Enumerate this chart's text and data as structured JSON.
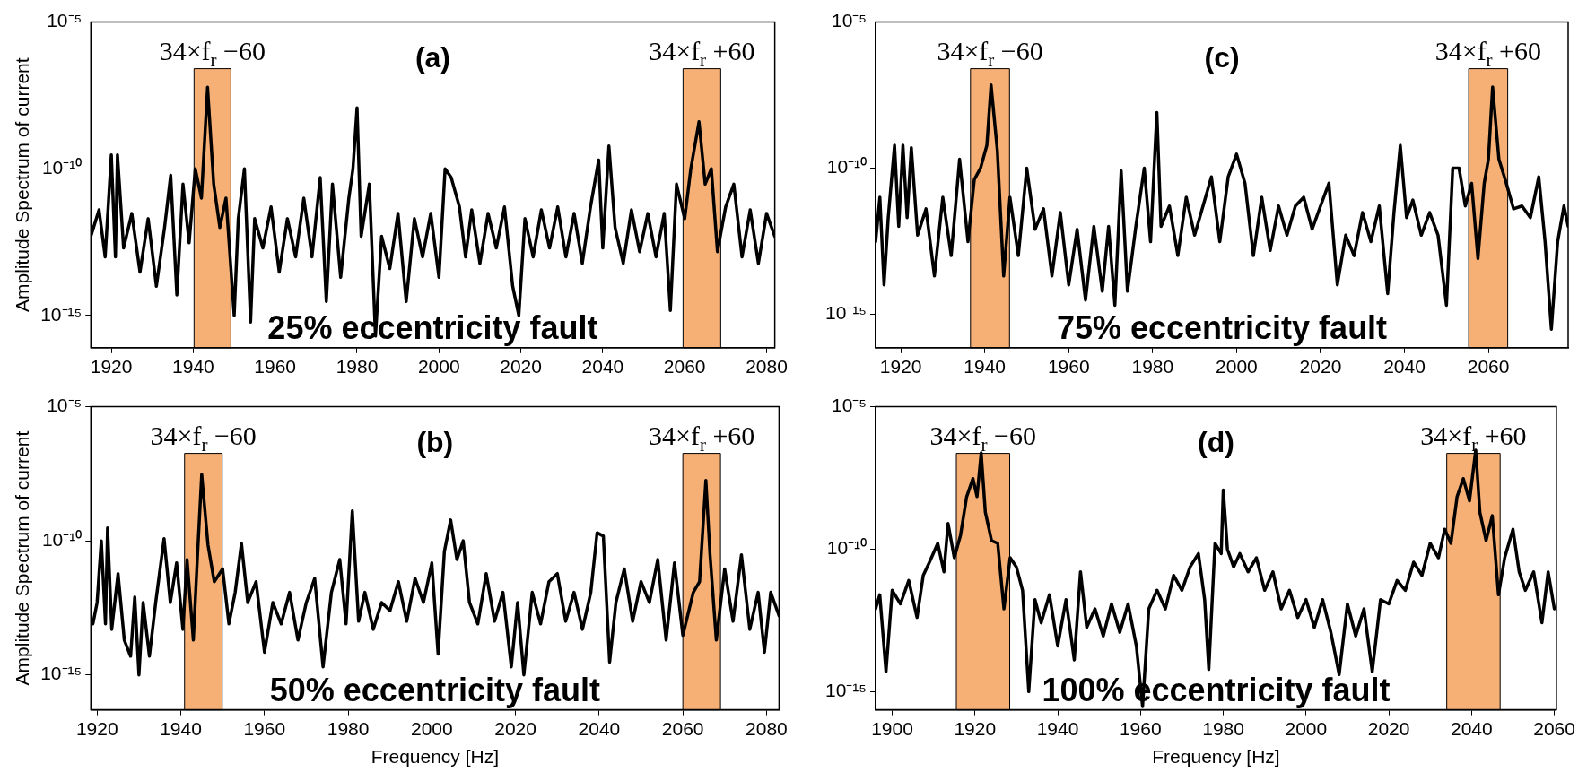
{
  "chart_data": [
    {
      "type": "line",
      "title": "(a)",
      "ylabel": "Amplitude Spectrum of current",
      "log": "y",
      "grid": false,
      "marker": "none",
      "line_style": "solid",
      "color": "#000000",
      "annotations": [
        "25% eccentricity fault"
      ],
      "xlim": [
        1915,
        2082
      ],
      "xticks": [
        1920,
        1940,
        1960,
        1980,
        2000,
        2020,
        2040,
        2060,
        2080
      ],
      "ylim": [
        8e-17,
        1e-05
      ],
      "yticks": [
        {
          "value": 1e-15,
          "label": "10⁻¹⁵"
        },
        {
          "value": 1e-10,
          "label": "10⁻¹⁰"
        },
        {
          "value": 1e-05,
          "label": "10⁻⁵"
        }
      ],
      "bands": [
        {
          "axis": "x",
          "from": 1940.2,
          "to": 1949.2,
          "label": "34×f$_{r}$ −60",
          "color": "#f5a25d"
        },
        {
          "axis": "x",
          "from": 2059.6,
          "to": 2068.8,
          "label": "34×f$_{r}$ +60",
          "color": "#f5a25d"
        }
      ],
      "x": [
        1915,
        1917,
        1918.5,
        1920,
        1921,
        1921.5,
        1923,
        1925,
        1927,
        1929,
        1931,
        1933,
        1934.5,
        1936,
        1937.5,
        1939,
        1940.5,
        1942,
        1943.5,
        1945,
        1946.5,
        1948,
        1950,
        1951,
        1952.5,
        1954,
        1955,
        1957,
        1959,
        1961,
        1963,
        1965,
        1967,
        1969,
        1971,
        1972.5,
        1974,
        1976,
        1978,
        1979,
        1980,
        1981,
        1983,
        1984.5,
        1986,
        1988,
        1990,
        1992,
        1994,
        1996,
        1998,
        2000,
        2001.5,
        2003,
        2005,
        2006.5,
        2008,
        2010,
        2012,
        2014,
        2016,
        2018,
        2019.5,
        2021,
        2023,
        2025,
        2027,
        2029,
        2031,
        2033,
        2035,
        2037,
        2039,
        2040,
        2041.5,
        2043,
        2045,
        2047,
        2049,
        2051,
        2053,
        2055,
        2056.5,
        2058,
        2060,
        2061.5,
        2063.5,
        2065,
        2066.5,
        2068,
        2070,
        2072,
        2074,
        2076,
        2078,
        2080,
        2082
      ],
      "values": [
        5e-13,
        4e-12,
        1e-13,
        3e-10,
        1e-13,
        3e-10,
        2e-13,
        3e-12,
        3e-14,
        2e-12,
        1e-14,
        1e-12,
        6e-11,
        5e-15,
        3e-11,
        3e-13,
        1e-10,
        1e-11,
        6e-08,
        3e-11,
        1e-12,
        1e-11,
        1e-15,
        2e-12,
        1e-10,
        6e-16,
        2e-12,
        2e-13,
        5e-12,
        3e-14,
        2e-12,
        1e-13,
        1e-11,
        1e-13,
        5e-11,
        3e-15,
        3e-11,
        2e-14,
        1e-11,
        1e-10,
        1.2e-08,
        5e-13,
        3e-11,
        2e-16,
        5e-13,
        4e-14,
        3e-12,
        3e-15,
        2e-12,
        1e-13,
        3e-12,
        2e-14,
        1e-10,
        5e-11,
        5e-12,
        1e-13,
        4e-12,
        6e-14,
        3e-12,
        2e-13,
        5e-12,
        1e-14,
        1e-15,
        2e-12,
        1e-13,
        4e-12,
        2e-13,
        5e-12,
        1e-13,
        3e-12,
        6e-14,
        5e-12,
        2e-10,
        2e-13,
        6e-10,
        1e-12,
        6e-14,
        4e-12,
        1.5e-13,
        3e-12,
        1e-13,
        3e-12,
        1.5e-15,
        3e-11,
        2e-12,
        1e-10,
        4e-09,
        3e-11,
        1e-10,
        1.5e-13,
        5e-12,
        3e-11,
        1e-13,
        4e-12,
        6e-14,
        3e-12,
        5e-13
      ]
    },
    {
      "type": "line",
      "title": "(c)",
      "log": "y",
      "grid": false,
      "marker": "none",
      "line_style": "solid",
      "color": "#000000",
      "annotations": [
        "75% eccentricity fault"
      ],
      "xlim": [
        1914,
        2079
      ],
      "xticks": [
        1920,
        1940,
        1960,
        1980,
        2000,
        2020,
        2040,
        2060
      ],
      "ylim": [
        7e-17,
        1e-05
      ],
      "yticks": [
        {
          "value": 1e-15,
          "label": "10⁻¹⁵"
        },
        {
          "value": 1e-10,
          "label": "10⁻¹⁰"
        },
        {
          "value": 1e-05,
          "label": "10⁻⁵"
        }
      ],
      "bands": [
        {
          "axis": "x",
          "from": 1936.6,
          "to": 1945.9,
          "label": "34×f$_{r}$ −60",
          "color": "#f5a25d"
        },
        {
          "axis": "x",
          "from": 2055.3,
          "to": 2064.6,
          "label": "34×f$_{r}$ +60",
          "color": "#f5a25d"
        }
      ],
      "x": [
        1914,
        1915,
        1916,
        1917,
        1918.5,
        1919.5,
        1920.5,
        1921.5,
        1922.5,
        1924,
        1926,
        1928,
        1930,
        1932,
        1934,
        1936,
        1937.5,
        1939,
        1940.5,
        1941.5,
        1943,
        1944.5,
        1946,
        1948,
        1950,
        1952,
        1954,
        1956,
        1958,
        1960,
        1962,
        1964,
        1966,
        1968,
        1969.5,
        1971,
        1972.5,
        1974,
        1976,
        1978,
        1979.5,
        1981,
        1982,
        1984,
        1986,
        1988,
        1990,
        1992,
        1994,
        1996,
        1998,
        2000,
        2002,
        2004,
        2006,
        2008,
        2010,
        2012,
        2014,
        2016,
        2018,
        2020,
        2022,
        2024,
        2026,
        2028,
        2030,
        2032,
        2034,
        2036,
        2037.5,
        2039,
        2040.5,
        2042,
        2044,
        2046,
        2048,
        2050,
        2051.5,
        2053,
        2054.5,
        2056,
        2057.5,
        2059,
        2060,
        2061,
        2062.5,
        2064,
        2066,
        2068,
        2070,
        2072,
        2073.5,
        2075,
        2076.5,
        2078,
        2079
      ],
      "values": [
        3e-13,
        1e-11,
        1e-14,
        2e-12,
        6e-10,
        1e-12,
        6e-10,
        2e-12,
        5e-10,
        5e-13,
        4e-12,
        2e-14,
        1e-11,
        1e-13,
        2e-10,
        3e-13,
        4e-11,
        1e-10,
        6e-10,
        7e-08,
        4e-10,
        2e-14,
        1e-11,
        1e-13,
        1e-10,
        8e-13,
        4e-12,
        2e-14,
        3e-12,
        1e-14,
        8e-13,
        3e-15,
        1e-12,
        6e-15,
        1e-12,
        2e-15,
        8e-11,
        6e-15,
        1e-12,
        1e-10,
        3e-13,
        8e-09,
        1e-12,
        5e-12,
        1e-13,
        1e-11,
        5e-13,
        5e-12,
        5e-11,
        3e-13,
        5e-11,
        3e-10,
        3e-11,
        1e-13,
        1e-11,
        1.5e-13,
        5e-12,
        5e-13,
        5e-12,
        1e-11,
        8e-13,
        5e-12,
        3e-11,
        1e-14,
        5e-13,
        1e-13,
        3e-12,
        3e-13,
        5e-12,
        5e-15,
        3e-12,
        6e-10,
        2e-12,
        8e-12,
        5e-13,
        3e-12,
        5e-13,
        2e-15,
        1e-10,
        1e-10,
        5e-12,
        3e-11,
        8e-14,
        3e-11,
        2e-10,
        6e-08,
        2e-10,
        4e-11,
        4e-12,
        5e-12,
        2e-12,
        5e-11,
        3e-13,
        3e-16,
        3e-13,
        5e-12,
        1e-12
      ]
    },
    {
      "type": "line",
      "title": "(b)",
      "xlabel": "Frequency [Hz]",
      "ylabel": "Amplitude Spectrum of current",
      "log": "y",
      "grid": false,
      "marker": "none",
      "line_style": "solid",
      "color": "#000000",
      "annotations": [
        "50% eccentricity fault"
      ],
      "xlim": [
        1918.5,
        2083
      ],
      "xticks": [
        1920,
        1940,
        1960,
        1980,
        2000,
        2020,
        2040,
        2060,
        2080
      ],
      "ylim": [
        5e-17,
        1e-05
      ],
      "yticks": [
        {
          "value": 1e-15,
          "label": "10⁻¹⁵"
        },
        {
          "value": 1e-10,
          "label": "10⁻¹⁰"
        },
        {
          "value": 1e-05,
          "label": "10⁻⁵"
        }
      ],
      "bands": [
        {
          "axis": "x",
          "from": 1940.9,
          "to": 1949.9,
          "label": "34×f$_{r}$ −60",
          "color": "#f5a25d"
        },
        {
          "axis": "x",
          "from": 2060,
          "to": 2069,
          "label": "34×f$_{r}$ +60",
          "color": "#f5a25d"
        }
      ],
      "x": [
        1919,
        1920,
        1921,
        1922,
        1922.5,
        1923.5,
        1925,
        1926.5,
        1928,
        1929,
        1930,
        1931,
        1932.5,
        1934,
        1936,
        1937.5,
        1939,
        1940.5,
        1941.5,
        1943,
        1944,
        1945,
        1946.5,
        1948,
        1950,
        1951.5,
        1953,
        1954.5,
        1956,
        1958,
        1960,
        1962,
        1964,
        1966,
        1968,
        1970,
        1972,
        1974,
        1976,
        1978,
        1979.5,
        1981,
        1982.5,
        1984,
        1986,
        1988,
        1990,
        1992,
        1994,
        1996,
        1998,
        2000,
        2001.5,
        2003,
        2004.5,
        2006,
        2007.5,
        2009,
        2011,
        2013,
        2015,
        2017,
        2019,
        2020.5,
        2022,
        2024,
        2026,
        2028,
        2030,
        2032,
        2034,
        2036,
        2038,
        2039.5,
        2041,
        2042.5,
        2044,
        2046,
        2048,
        2050,
        2052,
        2054,
        2056,
        2058,
        2060,
        2062.5,
        2064,
        2065.5,
        2066.5,
        2068,
        2070,
        2072,
        2074,
        2076,
        2078,
        2079.5,
        2081,
        2083
      ],
      "values": [
        8e-14,
        5e-13,
        1e-10,
        8e-14,
        3e-10,
        5e-14,
        6e-12,
        2e-14,
        5e-15,
        8e-13,
        1e-15,
        5e-13,
        5e-15,
        5e-13,
        1.2e-10,
        5e-13,
        1.5e-11,
        5e-14,
        2e-11,
        2e-14,
        3e-11,
        3e-08,
        7e-11,
        3e-12,
        9e-12,
        8e-14,
        1.2e-12,
        8e-11,
        5e-13,
        3e-12,
        7e-15,
        5e-13,
        8e-14,
        1.2e-12,
        2e-14,
        5e-13,
        4e-12,
        2e-15,
        1.2e-12,
        2e-11,
        8e-14,
        1.3e-09,
        1e-13,
        1.2e-12,
        5e-14,
        5e-13,
        2.5e-13,
        3e-12,
        1e-13,
        4e-12,
        5e-13,
        1.5e-11,
        6e-15,
        4e-11,
        6e-10,
        2e-11,
        1e-10,
        5e-13,
        8e-14,
        6e-12,
        1e-13,
        1.2e-12,
        2e-15,
        5e-13,
        1e-15,
        1.2e-12,
        8e-14,
        3e-12,
        6e-12,
        1e-13,
        1.2e-12,
        5e-14,
        1.2e-12,
        2e-10,
        1.5e-10,
        3e-15,
        5e-13,
        9e-12,
        1e-13,
        3e-12,
        5e-13,
        2e-11,
        2e-14,
        1.5e-11,
        3e-14,
        1.2e-12,
        3e-12,
        1.8e-08,
        3e-11,
        2e-14,
        9e-12,
        1e-13,
        3e-11,
        5e-14,
        1.2e-12,
        7e-15,
        1.2e-12,
        1.6e-13
      ]
    },
    {
      "type": "line",
      "title": "(d)",
      "xlabel": "Frequency [Hz]",
      "log": "y",
      "grid": false,
      "marker": "none",
      "line_style": "solid",
      "color": "#000000",
      "annotations": [
        "100% eccentricity fault"
      ],
      "xlim": [
        1896,
        2060.5
      ],
      "xticks": [
        1900,
        1920,
        1940,
        1960,
        1980,
        2000,
        2020,
        2040,
        2060
      ],
      "ylim": [
        2.3e-16,
        1e-05
      ],
      "yticks": [
        {
          "value": 1e-15,
          "label": "10⁻¹⁵"
        },
        {
          "value": 1e-10,
          "label": "10⁻¹⁰"
        },
        {
          "value": 1e-05,
          "label": "10⁻⁵"
        }
      ],
      "bands": [
        {
          "axis": "x",
          "from": 1915.5,
          "to": 1928.4,
          "label": "34×f$_{r}$ −60",
          "color": "#f5a25d"
        },
        {
          "axis": "x",
          "from": 2034,
          "to": 2046.9,
          "label": "34×f$_{r}$ +60",
          "color": "#f5a25d"
        }
      ],
      "x": [
        1896,
        1897,
        1898.5,
        1900,
        1902,
        1904,
        1906,
        1907.5,
        1909,
        1911,
        1912.5,
        1913.5,
        1915,
        1916.5,
        1918,
        1919.5,
        1920.5,
        1921.5,
        1922.5,
        1924,
        1925.5,
        1927,
        1928.5,
        1930,
        1931.5,
        1933,
        1934.5,
        1936,
        1938,
        1940,
        1942,
        1944,
        1945.5,
        1947,
        1949,
        1951,
        1953,
        1955,
        1957,
        1959,
        1960.5,
        1962,
        1964,
        1966,
        1968,
        1970,
        1972,
        1974,
        1975.5,
        1976.5,
        1978,
        1979.5,
        1980,
        1981,
        1982.5,
        1984,
        1986,
        1988,
        1990,
        1992,
        1994,
        1996,
        1998,
        2000,
        2002,
        2004,
        2006,
        2008,
        2010,
        2012,
        2014,
        2016,
        2018,
        2020,
        2022,
        2024,
        2026,
        2028,
        2030,
        2032,
        2033.5,
        2035,
        2036.5,
        2038,
        2039.5,
        2041,
        2042,
        2043.5,
        2045,
        2046.5,
        2048,
        2050,
        2051.5,
        2053,
        2055,
        2057,
        2058.5,
        2060
      ],
      "values": [
        8e-13,
        2.5e-12,
        5e-15,
        3.6e-12,
        1.2e-12,
        8e-12,
        4e-13,
        1.2e-11,
        3.5e-11,
        1.6e-10,
        1.6e-11,
        8e-10,
        5e-11,
        3e-10,
        7e-09,
        3e-08,
        7e-09,
        2.4e-07,
        2e-09,
        2e-10,
        1.6e-10,
        8e-13,
        5e-11,
        2.4e-11,
        3.6e-12,
        1e-15,
        1.7e-12,
        2.6e-13,
        2.5e-12,
        4e-14,
        1.7e-12,
        1.3e-14,
        1.6e-11,
        1.8e-13,
        8e-13,
        9e-14,
        1.2e-12,
        1.2e-13,
        1.2e-12,
        4e-14,
        3e-16,
        8e-13,
        3.6e-12,
        8e-13,
        1.2e-11,
        3.6e-12,
        2.4e-11,
        7e-11,
        1.7e-12,
        6e-15,
        1.6e-10,
        7e-11,
        1.2e-08,
        1e-10,
        2.4e-11,
        7e-11,
        1.6e-11,
        5e-11,
        3.6e-12,
        1.6e-11,
        8e-13,
        3.6e-12,
        4e-13,
        1.7e-12,
        1.8e-13,
        1.7e-12,
        1.2e-13,
        4e-15,
        1.2e-12,
        9e-14,
        8e-13,
        5e-15,
        1.7e-12,
        1.2e-12,
        8e-12,
        3.6e-12,
        3.5e-11,
        1.2e-11,
        1.6e-10,
        5e-11,
        5e-10,
        1.6e-10,
        7e-09,
        3e-08,
        5e-09,
        3e-07,
        2e-09,
        2e-10,
        1.5e-09,
        2.5e-12,
        5e-11,
        5e-10,
        1.6e-11,
        3.6e-12,
        1.6e-11,
        2.6e-13,
        1.6e-11,
        8e-13
      ]
    }
  ]
}
